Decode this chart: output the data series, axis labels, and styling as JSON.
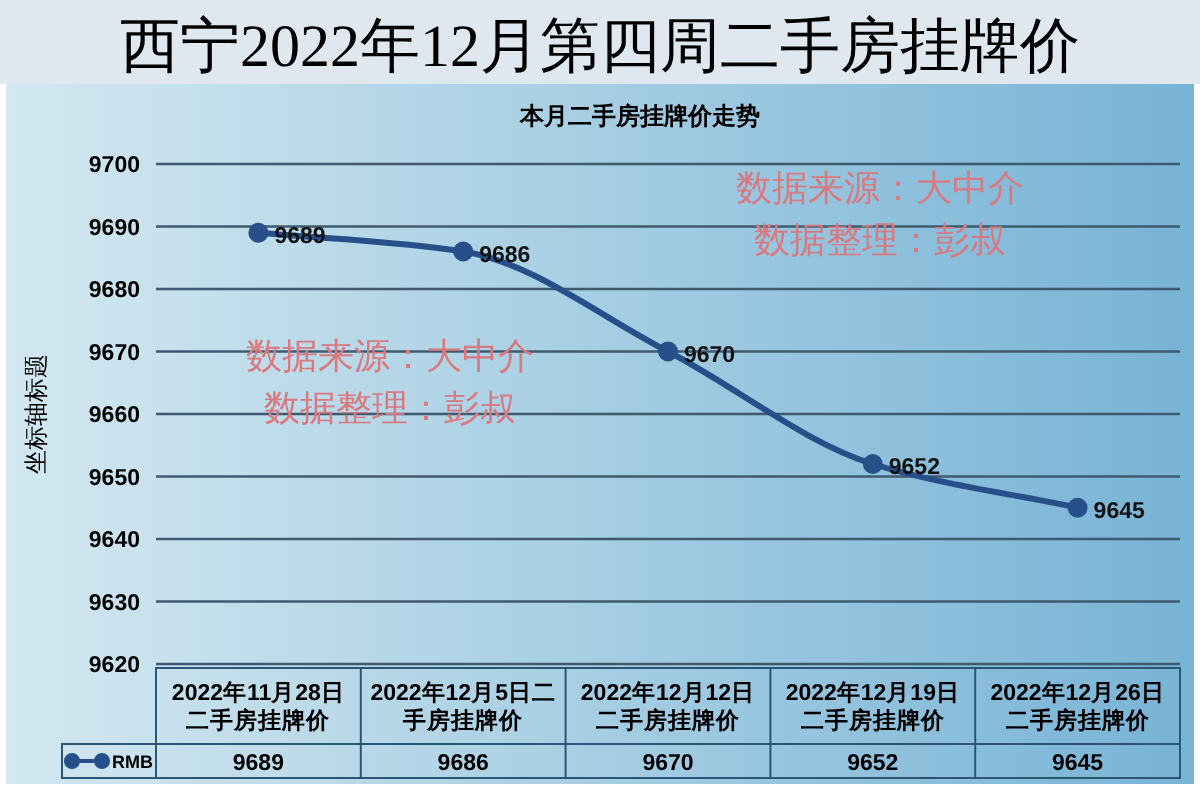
{
  "chart_data": {
    "type": "line",
    "title": "西宁2022年12月第四周二手房挂牌价",
    "subtitle": "本月二手房挂牌价走势",
    "ylabel": "坐标轴标题",
    "categories": [
      "2022年11月28日二手房挂牌价",
      "2022年12月5日二手房挂牌价",
      "2022年12月12日二手房挂牌价",
      "2022年12月19日二手房挂牌价",
      "2022年12月26日二手房挂牌价"
    ],
    "series": [
      {
        "name": "RMB",
        "color": "#27508a",
        "values": [
          9689,
          9686,
          9670,
          9652,
          9645
        ]
      }
    ],
    "ylim": [
      9620,
      9700
    ],
    "yticks": [
      9620,
      9630,
      9640,
      9650,
      9660,
      9670,
      9680,
      9690,
      9700
    ],
    "grid": "y",
    "marker": "circle",
    "data_labels": true,
    "legend": "bottom",
    "annotations": [
      "数据来源：大中介",
      "数据整理：彭叔",
      "数据来源：大中介",
      "数据整理：彭叔",
      {
        "text": "9689",
        "x": "2022年11月28日二手房挂牌价",
        "y": 9689
      },
      {
        "text": "9686",
        "x": "2022年12月5日二手房挂牌价",
        "y": 9686
      },
      {
        "text": "9670",
        "x": "2022年12月12日二手房挂牌价",
        "y": 9670
      },
      {
        "text": "9652",
        "x": "2022年12月19日二手房挂牌价",
        "y": 9652
      },
      {
        "text": "9645",
        "x": "2022年12月26日二手房挂牌价",
        "y": 9645
      }
    ]
  }
}
